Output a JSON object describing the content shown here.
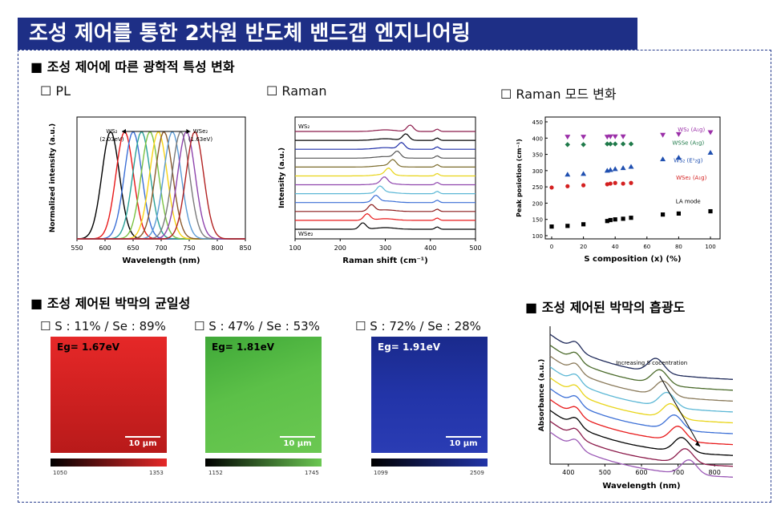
{
  "header": {
    "title": "조성 제어를 통한 2차원 반도체 밴드갭 엔지니어링"
  },
  "sections": {
    "optical": "■ 조성 제어에 따른 광학적 특성 변화",
    "uniformity": "■ 조성 제어된 박막의 균일성",
    "absorbance": "■ 조성 제어된 박막의 흡광도"
  },
  "subtitles": {
    "pl": "☐ PL",
    "raman": "☐ Raman",
    "raman_mode": "☐ Raman 모드 변화"
  },
  "maps": [
    {
      "label": "☐ S : 11% / Se : 89%",
      "eg": "Eg= 1.67eV",
      "scale": "10 μm",
      "cmin": "1050",
      "cmax": "1353",
      "color": "#e02a2a",
      "dark": "#1a0000"
    },
    {
      "label": "☐ S : 47% / Se : 53%",
      "eg": "Eg= 1.81eV",
      "scale": "10 μm",
      "cmin": "1152",
      "cmax": "1745",
      "color": "#59c043",
      "dark": "#001a00"
    },
    {
      "label": "☐ S : 72% / Se : 28%",
      "eg": "Eg= 1.91eV",
      "scale": "10 μm",
      "cmin": "1099",
      "cmax": "2509",
      "color": "#1f2fa8",
      "dark": "#000010"
    }
  ],
  "chart_data": [
    {
      "type": "line",
      "title": "PL",
      "xlabel": "Wavelength (nm)",
      "ylabel": "Normalized intensity (a.u.)",
      "xlim": [
        550,
        850
      ],
      "xticks": [
        550,
        600,
        650,
        700,
        750,
        800,
        850
      ],
      "annotations": [
        "WS₂\n(2.03eV)",
        "WSe₂\n(1.63eV)"
      ],
      "series": [
        {
          "peak": 610,
          "color": "#000000"
        },
        {
          "peak": 635,
          "color": "#e8191a"
        },
        {
          "peak": 650,
          "color": "#3b6fd6"
        },
        {
          "peak": 665,
          "color": "#2aa198"
        },
        {
          "peak": 680,
          "color": "#7bc242"
        },
        {
          "peak": 695,
          "color": "#f7d417"
        },
        {
          "peak": 705,
          "color": "#8b5a2b"
        },
        {
          "peak": 720,
          "color": "#5b9bd5"
        },
        {
          "peak": 735,
          "color": "#7a7a7a"
        },
        {
          "peak": 745,
          "color": "#8e44ad"
        },
        {
          "peak": 760,
          "color": "#b22222"
        }
      ]
    },
    {
      "type": "line",
      "title": "Raman",
      "xlabel": "Raman shift (cm⁻¹)",
      "ylabel": "Intensity (a.u.)",
      "xlim": [
        100,
        500
      ],
      "xticks": [
        100,
        200,
        300,
        400,
        500
      ],
      "top_label": "WS₂",
      "bottom_label": "WSe₂",
      "series_colors": [
        "#8b1a4a",
        "#000000",
        "#1f2fa8",
        "#555555",
        "#7a6a2a",
        "#e8d417",
        "#8e44ad",
        "#5bb7d5",
        "#3b6fd6",
        "#8b1a1a",
        "#e8191a",
        "#000000"
      ]
    },
    {
      "type": "scatter",
      "title": "Raman 모드 변화",
      "xlabel": "S composition (x) (%)",
      "ylabel": "Peak posiotion (cm⁻¹)",
      "xlim": [
        0,
        100
      ],
      "ylim": [
        100,
        450
      ],
      "xticks": [
        0,
        20,
        40,
        60,
        80,
        100
      ],
      "yticks": [
        100,
        150,
        200,
        250,
        300,
        350,
        400,
        450
      ],
      "series": [
        {
          "name": "WS₂ (A₁g)",
          "color": "#9b2fa8",
          "marker": "tri-down",
          "x": [
            10,
            20,
            35,
            37,
            40,
            45,
            70,
            80,
            100
          ],
          "y": [
            404,
            404,
            404,
            405,
            405,
            405,
            410,
            412,
            418
          ]
        },
        {
          "name": "WSSe (A₁g)",
          "color": "#1f7a4a",
          "marker": "diamond",
          "x": [
            10,
            20,
            35,
            37,
            40,
            45,
            50
          ],
          "y": [
            380,
            380,
            382,
            382,
            382,
            382,
            382
          ]
        },
        {
          "name": "WS₂ (E¹₂g)",
          "color": "#1f4fb0",
          "marker": "tri-up",
          "x": [
            10,
            20,
            35,
            37,
            40,
            45,
            50,
            70,
            80,
            100
          ],
          "y": [
            288,
            290,
            300,
            302,
            305,
            308,
            312,
            335,
            340,
            355
          ]
        },
        {
          "name": "WSe₂ (A₁g)",
          "color": "#d42020",
          "marker": "circle",
          "x": [
            0,
            10,
            20,
            35,
            37,
            40,
            45,
            50
          ],
          "y": [
            248,
            252,
            255,
            258,
            260,
            262,
            260,
            262
          ]
        },
        {
          "name": "LA mode",
          "color": "#000000",
          "marker": "square",
          "x": [
            0,
            10,
            20,
            35,
            37,
            40,
            45,
            50,
            70,
            80,
            100
          ],
          "y": [
            128,
            130,
            135,
            145,
            148,
            150,
            152,
            155,
            165,
            168,
            175
          ]
        }
      ]
    },
    {
      "type": "line",
      "title": "흡광도",
      "xlabel": "Wavelength (nm)",
      "ylabel": "Absorbance (a.u.)",
      "xlim": [
        350,
        850
      ],
      "xticks": [
        400,
        500,
        600,
        700,
        800
      ],
      "annotation": "Increasing S cocentration",
      "series_colors": [
        "#1f2a5a",
        "#4a6a2a",
        "#8a7a5a",
        "#5bb7d5",
        "#e8d417",
        "#3b6fd6",
        "#e8191a",
        "#000000",
        "#8b1a4a",
        "#9b59b6"
      ]
    }
  ]
}
